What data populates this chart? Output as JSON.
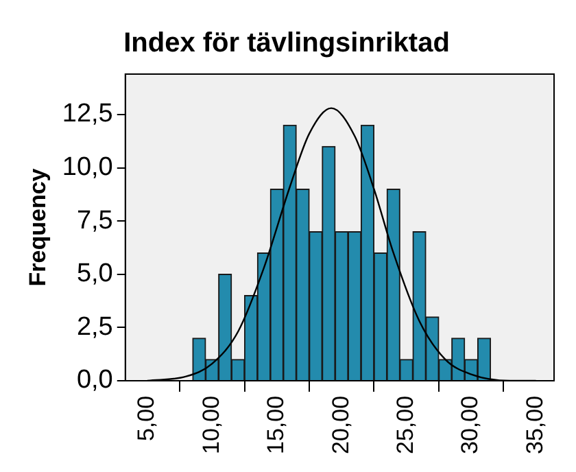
{
  "chart_data": {
    "type": "histogram",
    "title": "Index för tävlingsinriktad",
    "ylabel": "Frequency",
    "bins": [
      8.5,
      9.5,
      10.5,
      11.5,
      12.5,
      13.5,
      14.5,
      15.5,
      16.5,
      17.5,
      18.5,
      19.5,
      20.5,
      21.5,
      22.5,
      23.5,
      24.5,
      25.5,
      26.5,
      27.5,
      28.5,
      29.5,
      30.5,
      31.5
    ],
    "values": [
      2,
      1,
      5,
      1,
      4,
      6,
      9,
      12,
      9,
      7,
      11,
      7,
      7,
      12,
      6,
      9,
      1,
      7,
      3,
      1,
      2,
      1,
      2
    ],
    "color": "#238bad",
    "series": [
      {
        "type": "line",
        "color": "#000000",
        "x": [
          5,
          8,
          10,
          12,
          14,
          16,
          17.5,
          19.2,
          21,
          22.5,
          24,
          26,
          28,
          30,
          33,
          35
        ],
        "values": [
          0.0,
          0.2,
          0.8,
          2.3,
          5.3,
          9.1,
          11.6,
          12.8,
          11.5,
          9.0,
          6.0,
          2.8,
          1.0,
          0.3,
          0.0,
          0.0
        ]
      }
    ],
    "xlim": [
      3.3,
      36.4
    ],
    "ylim": [
      0,
      14.4
    ],
    "xticks": [
      {
        "value": 5,
        "label": "5,00"
      },
      {
        "value": 10,
        "label": "10,00"
      },
      {
        "value": 15,
        "label": "15,00"
      },
      {
        "value": 20,
        "label": "20,00"
      },
      {
        "value": 25,
        "label": "25,00"
      },
      {
        "value": 30,
        "label": "30,00"
      },
      {
        "value": 35,
        "label": "35,00"
      }
    ],
    "yticks": [
      {
        "value": 0,
        "label": "0,0"
      },
      {
        "value": 2.5,
        "label": "2,5"
      },
      {
        "value": 5,
        "label": "5,0"
      },
      {
        "value": 7.5,
        "label": "7,5"
      },
      {
        "value": 10,
        "label": "10,0"
      },
      {
        "value": 12.5,
        "label": "12,5"
      }
    ],
    "grid": false,
    "legend": false,
    "marker": "none",
    "line_style": "solid"
  }
}
